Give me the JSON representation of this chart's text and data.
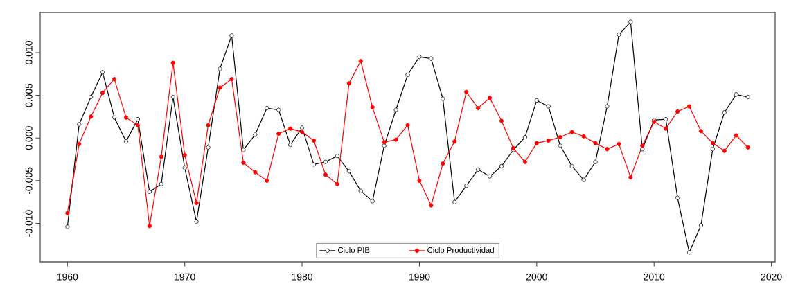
{
  "chart_data": {
    "type": "line",
    "x": [
      1960,
      1961,
      1962,
      1963,
      1964,
      1965,
      1966,
      1967,
      1968,
      1969,
      1970,
      1971,
      1972,
      1973,
      1974,
      1975,
      1976,
      1977,
      1978,
      1979,
      1980,
      1981,
      1982,
      1983,
      1984,
      1985,
      1986,
      1987,
      1988,
      1989,
      1990,
      1991,
      1992,
      1993,
      1994,
      1995,
      1996,
      1997,
      1998,
      1999,
      2000,
      2001,
      2002,
      2003,
      2004,
      2005,
      2006,
      2007,
      2008,
      2009,
      2010,
      2011,
      2012,
      2013,
      2014,
      2015,
      2016,
      2017,
      2018
    ],
    "series": [
      {
        "name": "Ciclo PIB",
        "color": "#000000",
        "marker": "circle",
        "values": [
          -0.0104,
          0.0016,
          0.0048,
          0.0077,
          0.0024,
          -0.0004,
          0.0022,
          -0.0063,
          -0.0054,
          0.0048,
          -0.0035,
          -0.0098,
          -0.0011,
          0.0081,
          0.012,
          -0.0014,
          0.0004,
          0.0035,
          0.0033,
          -0.0008,
          0.0012,
          -0.0031,
          -0.0028,
          -0.0021,
          -0.0039,
          -0.0062,
          -0.0074,
          -0.0009,
          0.0033,
          0.0074,
          0.0095,
          0.0093,
          0.0046,
          -0.0075,
          -0.0056,
          -0.0037,
          -0.0045,
          -0.0033,
          -0.0014,
          0.0001,
          0.0044,
          0.0037,
          -0.0009,
          -0.0033,
          -0.0049,
          -0.0028,
          0.0037,
          0.0121,
          0.0136,
          -0.0013,
          0.0021,
          0.0022,
          -0.007,
          -0.0134,
          -0.0102,
          -0.0013,
          0.003,
          0.0051,
          0.0048
        ]
      },
      {
        "name": "Ciclo Productividad",
        "color": "#ff0000",
        "marker": "circle",
        "values": [
          -0.0088,
          -0.0007,
          0.0025,
          0.0053,
          0.0069,
          0.0024,
          0.0015,
          -0.0103,
          -0.0022,
          0.0088,
          -0.002,
          -0.0076,
          0.0015,
          0.0059,
          0.0069,
          -0.0029,
          -0.004,
          -0.005,
          0.0005,
          0.0011,
          0.0007,
          -0.0003,
          -0.0043,
          -0.0054,
          0.0064,
          0.009,
          0.0036,
          -0.0005,
          -0.0002,
          0.0015,
          -0.005,
          -0.0079,
          -0.003,
          -0.0004,
          0.0054,
          0.0035,
          0.0047,
          0.002,
          -0.0012,
          -0.0028,
          -0.0006,
          -0.0003,
          0.0001,
          0.0007,
          0.0002,
          -0.0006,
          -0.0013,
          -0.0007,
          -0.0046,
          -0.0009,
          0.0019,
          0.0011,
          0.0031,
          0.0037,
          0.0008,
          -0.0006,
          -0.0015,
          0.0003,
          -0.0011
        ]
      }
    ],
    "xlim": [
      1957.68,
      2020.32
    ],
    "ylim": [
      -0.0145,
      0.0147
    ],
    "xticks": [
      1960,
      1970,
      1980,
      1990,
      2000,
      2010,
      2020
    ],
    "yticks": [
      {
        "value": -0.01,
        "label": "-0.010"
      },
      {
        "value": -0.005,
        "label": "-0.005"
      },
      {
        "value": 0,
        "label": "0.000"
      },
      {
        "value": 0.005,
        "label": "0.005"
      },
      {
        "value": 0.01,
        "label": "0.010"
      }
    ],
    "grid": false,
    "legend": "bottom",
    "line_style": "solid"
  }
}
